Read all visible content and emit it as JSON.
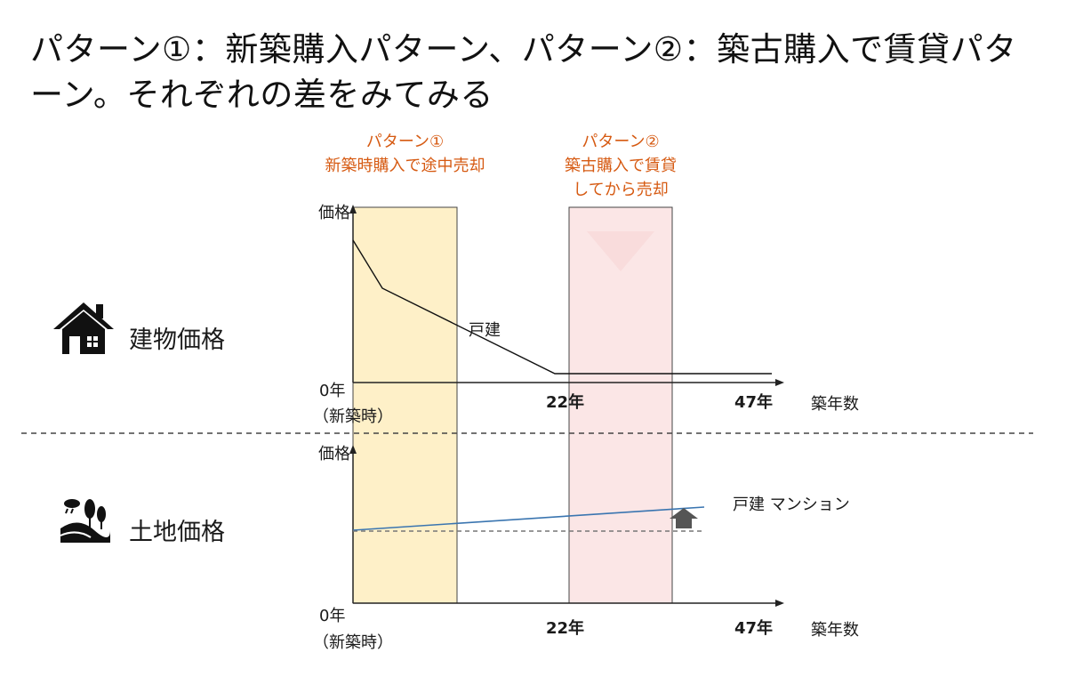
{
  "title": "パターン①：新築購入パターン、パターン②：築古購入で賃貸パターン。それぞれの差をみてみる",
  "colors": {
    "accent_orange": "#d65a12",
    "band1_fill": "#fef0c8",
    "band2_fill": "#fbe6e6",
    "land_line": "#3a75b0",
    "arrow_gray": "#555555"
  },
  "pattern1": {
    "name": "パターン①",
    "desc": "新築時購入で途中売却"
  },
  "pattern2": {
    "name": "パターン②",
    "desc_line1": "築古購入で賃貸",
    "desc_line2": "してから売却"
  },
  "building": {
    "row_label": "建物価格",
    "y_axis_label": "価格",
    "x_origin_label_line1": "0年",
    "x_origin_label_line2": "（新築時）",
    "tick_22": "22年",
    "tick_47": "47年",
    "x_axis_label": "築年数",
    "series_label": "戸建",
    "icon": "house-icon"
  },
  "land": {
    "row_label": "土地価格",
    "y_axis_label": "価格",
    "x_origin_label_line1": "0年",
    "x_origin_label_line2": "（新築時）",
    "tick_22": "22年",
    "tick_47": "47年",
    "x_axis_label": "築年数",
    "series_label": "戸建 マンション",
    "icon": "landscape-icon"
  }
}
